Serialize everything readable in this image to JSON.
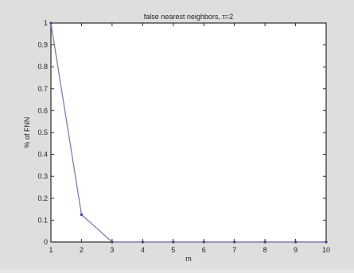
{
  "chart_data": {
    "type": "line",
    "title": "false nearest neighbors, τ=2",
    "xlabel": "m",
    "ylabel": "% of FNN",
    "xlim": [
      1,
      10
    ],
    "ylim": [
      0,
      1
    ],
    "x_ticks": [
      1,
      2,
      3,
      4,
      5,
      6,
      7,
      8,
      9,
      10
    ],
    "y_ticks": [
      0,
      0.1,
      0.2,
      0.3,
      0.4,
      0.5,
      0.6,
      0.7,
      0.8,
      0.9,
      1
    ],
    "grid": false,
    "series": [
      {
        "x": [
          1,
          2,
          3,
          4,
          5,
          6,
          7,
          8,
          9,
          10
        ],
        "values": [
          1.0,
          0.125,
          0.0,
          0.0,
          0.0,
          0.0,
          0.0,
          0.0,
          0.0,
          0.0
        ],
        "color": "#7a7fb3",
        "marker": "dot"
      }
    ],
    "colors": {
      "figure_background": "#dedede",
      "axes_background": "#ffffff",
      "axes_frame": "#2a2a2a"
    }
  }
}
